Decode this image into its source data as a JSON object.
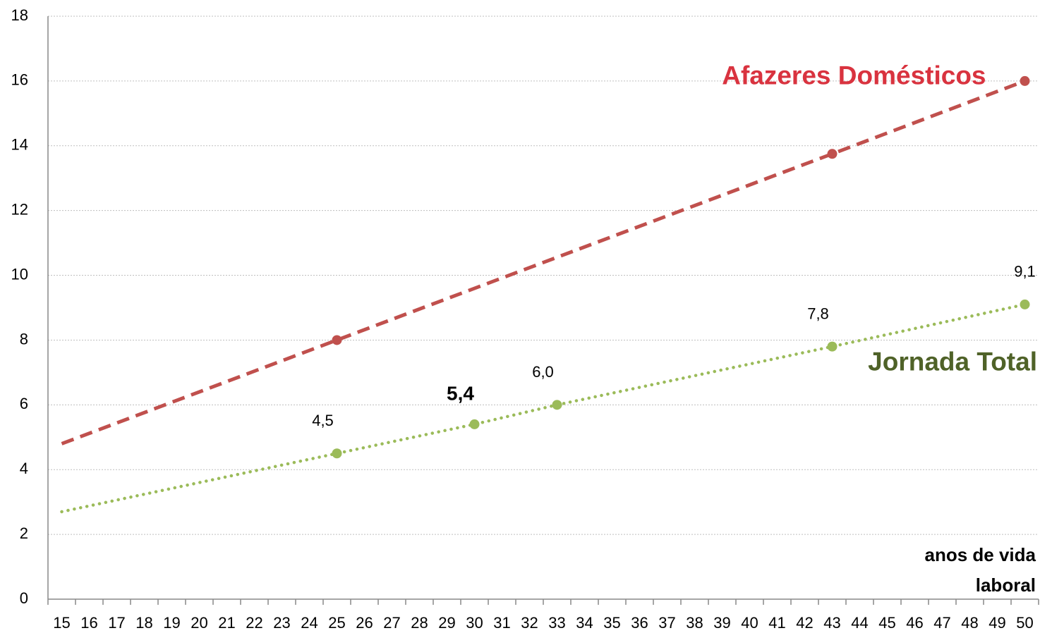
{
  "chart_data": {
    "type": "line",
    "xlabel": "anos de vida laboral",
    "xlim": [
      14.5,
      50.5
    ],
    "xticks": [
      15,
      16,
      17,
      18,
      19,
      20,
      21,
      22,
      23,
      24,
      25,
      26,
      27,
      28,
      29,
      30,
      31,
      32,
      33,
      34,
      35,
      36,
      37,
      38,
      39,
      40,
      41,
      42,
      43,
      44,
      45,
      46,
      47,
      48,
      49,
      50
    ],
    "ylim": [
      0,
      18
    ],
    "yticks": [
      0,
      2,
      4,
      6,
      8,
      10,
      12,
      14,
      16,
      18
    ],
    "grid": true,
    "series": [
      {
        "name": "Afazeres Domésticos",
        "color": "#c0504d",
        "label_color": "#d9333f",
        "line_style": "dashed",
        "x": [
          15,
          25,
          43,
          50
        ],
        "values": [
          4.8,
          8,
          13.75,
          16
        ]
      },
      {
        "name": "Jornada Total",
        "color": "#9bbb59",
        "label_color": "#4f6228",
        "line_style": "dotted",
        "x": [
          15,
          25,
          30,
          33,
          43,
          50
        ],
        "values": [
          2.7,
          4.5,
          5.4,
          6.0,
          7.8,
          9.1
        ],
        "value_labels": [
          null,
          "4,5",
          "5,4",
          "6,0",
          "7,8",
          "9,1"
        ]
      }
    ]
  }
}
